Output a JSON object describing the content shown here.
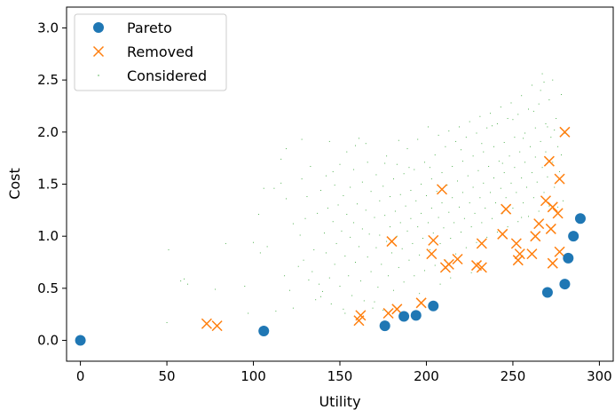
{
  "chart_data": {
    "type": "scatter",
    "title": "",
    "xlabel": "Utility",
    "ylabel": "Cost",
    "xlim": [
      -8,
      308
    ],
    "ylim": [
      -0.2,
      3.2
    ],
    "xticks": [
      0,
      50,
      100,
      150,
      200,
      250,
      300
    ],
    "yticks": [
      0.0,
      0.5,
      1.0,
      1.5,
      2.0,
      2.5,
      3.0
    ],
    "grid": false,
    "legend_position": "top-left",
    "series": [
      {
        "name": "Pareto",
        "marker": "circle",
        "color": "#1f77b4",
        "points": [
          [
            0,
            0.0
          ],
          [
            106,
            0.09
          ],
          [
            176,
            0.14
          ],
          [
            187,
            0.23
          ],
          [
            194,
            0.24
          ],
          [
            204,
            0.33
          ],
          [
            270,
            0.46
          ],
          [
            280,
            0.54
          ],
          [
            282,
            0.79
          ],
          [
            285,
            1.0
          ],
          [
            289,
            1.17
          ]
        ]
      },
      {
        "name": "Removed",
        "marker": "x",
        "color": "#ff7f0e",
        "points": [
          [
            73,
            0.16
          ],
          [
            79,
            0.14
          ],
          [
            161,
            0.19
          ],
          [
            162,
            0.24
          ],
          [
            178,
            0.26
          ],
          [
            183,
            0.3
          ],
          [
            180,
            0.95
          ],
          [
            197,
            0.36
          ],
          [
            203,
            0.83
          ],
          [
            204,
            0.96
          ],
          [
            209,
            1.45
          ],
          [
            211,
            0.7
          ],
          [
            213,
            0.73
          ],
          [
            218,
            0.78
          ],
          [
            229,
            0.72
          ],
          [
            232,
            0.7
          ],
          [
            232,
            0.93
          ],
          [
            244,
            1.02
          ],
          [
            246,
            1.26
          ],
          [
            252,
            0.93
          ],
          [
            253,
            0.77
          ],
          [
            254,
            0.83
          ],
          [
            261,
            0.83
          ],
          [
            263,
            1.0
          ],
          [
            265,
            1.12
          ],
          [
            269,
            1.34
          ],
          [
            271,
            1.72
          ],
          [
            272,
            1.07
          ],
          [
            273,
            0.74
          ],
          [
            273,
            1.28
          ],
          [
            276,
            1.22
          ],
          [
            277,
            1.55
          ],
          [
            277,
            0.85
          ],
          [
            280,
            2.0
          ]
        ]
      },
      {
        "name": "Considered",
        "marker": "point",
        "color": "#2ca02c",
        "points": [
          [
            50,
            0.17
          ],
          [
            51,
            0.87
          ],
          [
            58,
            0.57
          ],
          [
            60,
            0.59
          ],
          [
            62,
            0.54
          ],
          [
            78,
            0.49
          ],
          [
            84,
            0.93
          ],
          [
            95,
            0.52
          ],
          [
            97,
            0.26
          ],
          [
            100,
            0.94
          ],
          [
            103,
            1.21
          ],
          [
            104,
            0.84
          ],
          [
            106,
            1.46
          ],
          [
            108,
            0.9
          ],
          [
            112,
            1.46
          ],
          [
            113,
            0.28
          ],
          [
            116,
            1.51
          ],
          [
            116,
            1.74
          ],
          [
            119,
            1.36
          ],
          [
            119,
            1.84
          ],
          [
            123,
            0.31
          ],
          [
            123,
            1.12
          ],
          [
            126,
            0.71
          ],
          [
            127,
            1.01
          ],
          [
            128,
            1.55
          ],
          [
            129,
            0.77
          ],
          [
            130,
            1.17
          ],
          [
            131,
            1.38
          ],
          [
            133,
            1.67
          ],
          [
            134,
            0.66
          ],
          [
            135,
            0.87
          ],
          [
            136,
            0.39
          ],
          [
            137,
            1.22
          ],
          [
            138,
            0.54
          ],
          [
            139,
            1.44
          ],
          [
            140,
            0.47
          ],
          [
            141,
            1.03
          ],
          [
            142,
            0.84
          ],
          [
            142,
            1.58
          ],
          [
            143,
            1.27
          ],
          [
            144,
            0.6
          ],
          [
            144,
            1.91
          ],
          [
            145,
            0.35
          ],
          [
            146,
            1.14
          ],
          [
            147,
            0.73
          ],
          [
            147,
            1.49
          ],
          [
            148,
            0.93
          ],
          [
            149,
            1.3
          ],
          [
            150,
            0.52
          ],
          [
            150,
            1.69
          ],
          [
            151,
            1.05
          ],
          [
            152,
            0.3
          ],
          [
            152,
            1.39
          ],
          [
            153,
            0.81
          ],
          [
            154,
            1.21
          ],
          [
            154,
            1.81
          ],
          [
            155,
            0.62
          ],
          [
            156,
            0.99
          ],
          [
            156,
            1.47
          ],
          [
            157,
            0.43
          ],
          [
            158,
            1.13
          ],
          [
            158,
            1.64
          ],
          [
            159,
            0.75
          ],
          [
            160,
            1.31
          ],
          [
            161,
            0.9
          ],
          [
            161,
            1.94
          ],
          [
            162,
            0.57
          ],
          [
            163,
            1.07
          ],
          [
            163,
            1.52
          ],
          [
            164,
            0.38
          ],
          [
            165,
            1.25
          ],
          [
            166,
            0.8
          ],
          [
            166,
            1.71
          ],
          [
            167,
            1.02
          ],
          [
            168,
            0.66
          ],
          [
            168,
            1.43
          ],
          [
            169,
            0.31
          ],
          [
            170,
            1.18
          ],
          [
            171,
            0.89
          ],
          [
            171,
            1.59
          ],
          [
            172,
            0.51
          ],
          [
            173,
            1.34
          ],
          [
            173,
            1.01
          ],
          [
            174,
            0.73
          ],
          [
            175,
            1.48
          ],
          [
            175,
            0.29
          ],
          [
            176,
            1.2
          ],
          [
            177,
            0.95
          ],
          [
            177,
            1.77
          ],
          [
            178,
            0.62
          ],
          [
            179,
            1.38
          ],
          [
            179,
            1.09
          ],
          [
            180,
            0.84
          ],
          [
            181,
            1.55
          ],
          [
            181,
            0.48
          ],
          [
            182,
            1.24
          ],
          [
            183,
            1.0
          ],
          [
            183,
            1.69
          ],
          [
            184,
            0.7
          ],
          [
            185,
            1.4
          ],
          [
            185,
            1.13
          ],
          [
            186,
            0.88
          ],
          [
            187,
            1.6
          ],
          [
            187,
            0.56
          ],
          [
            188,
            1.29
          ],
          [
            189,
            1.05
          ],
          [
            189,
            1.84
          ],
          [
            190,
            0.77
          ],
          [
            191,
            1.44
          ],
          [
            191,
            1.17
          ],
          [
            192,
            0.93
          ],
          [
            193,
            1.64
          ],
          [
            193,
            0.62
          ],
          [
            194,
            1.34
          ],
          [
            195,
            1.09
          ],
          [
            195,
            1.93
          ],
          [
            196,
            0.82
          ],
          [
            197,
            1.5
          ],
          [
            197,
            1.22
          ],
          [
            198,
            0.98
          ],
          [
            199,
            1.71
          ],
          [
            199,
            0.67
          ],
          [
            200,
            1.39
          ],
          [
            201,
            1.13
          ],
          [
            201,
            2.05
          ],
          [
            202,
            0.87
          ],
          [
            203,
            1.55
          ],
          [
            203,
            1.27
          ],
          [
            204,
            1.03
          ],
          [
            205,
            1.78
          ],
          [
            205,
            0.72
          ],
          [
            206,
            1.43
          ],
          [
            207,
            1.18
          ],
          [
            207,
            1.97
          ],
          [
            208,
            0.93
          ],
          [
            209,
            1.61
          ],
          [
            209,
            1.32
          ],
          [
            210,
            1.08
          ],
          [
            211,
            1.86
          ],
          [
            211,
            0.77
          ],
          [
            212,
            1.49
          ],
          [
            213,
            1.23
          ],
          [
            213,
            2.01
          ],
          [
            214,
            0.98
          ],
          [
            215,
            1.67
          ],
          [
            215,
            1.37
          ],
          [
            216,
            1.13
          ],
          [
            217,
            1.91
          ],
          [
            217,
            0.83
          ],
          [
            218,
            1.53
          ],
          [
            219,
            1.28
          ],
          [
            219,
            2.05
          ],
          [
            220,
            1.04
          ],
          [
            221,
            1.72
          ],
          [
            221,
            1.42
          ],
          [
            222,
            1.17
          ],
          [
            223,
            1.95
          ],
          [
            223,
            0.89
          ],
          [
            224,
            1.58
          ],
          [
            225,
            1.32
          ],
          [
            225,
            2.1
          ],
          [
            226,
            1.09
          ],
          [
            227,
            1.77
          ],
          [
            227,
            1.47
          ],
          [
            228,
            1.22
          ],
          [
            229,
            1.99
          ],
          [
            229,
            0.94
          ],
          [
            230,
            1.63
          ],
          [
            231,
            1.37
          ],
          [
            231,
            2.15
          ],
          [
            232,
            1.13
          ],
          [
            233,
            1.81
          ],
          [
            233,
            1.51
          ],
          [
            234,
            1.27
          ],
          [
            235,
            2.04
          ],
          [
            235,
            0.99
          ],
          [
            236,
            1.67
          ],
          [
            237,
            1.42
          ],
          [
            237,
            2.18
          ],
          [
            238,
            1.17
          ],
          [
            239,
            1.86
          ],
          [
            239,
            1.56
          ],
          [
            240,
            1.32
          ],
          [
            241,
            2.08
          ],
          [
            241,
            1.04
          ],
          [
            242,
            1.72
          ],
          [
            243,
            1.46
          ],
          [
            243,
            2.24
          ],
          [
            244,
            1.22
          ],
          [
            245,
            1.9
          ],
          [
            245,
            1.61
          ],
          [
            246,
            1.37
          ],
          [
            247,
            2.13
          ],
          [
            247,
            1.09
          ],
          [
            248,
            1.77
          ],
          [
            249,
            1.51
          ],
          [
            249,
            2.28
          ],
          [
            250,
            1.27
          ],
          [
            251,
            1.95
          ],
          [
            251,
            1.66
          ],
          [
            252,
            1.42
          ],
          [
            253,
            2.17
          ],
          [
            253,
            1.14
          ],
          [
            254,
            1.81
          ],
          [
            255,
            1.56
          ],
          [
            255,
            2.35
          ],
          [
            256,
            1.32
          ],
          [
            257,
            1.99
          ],
          [
            257,
            1.71
          ],
          [
            258,
            1.47
          ],
          [
            259,
            2.22
          ],
          [
            259,
            1.19
          ],
          [
            260,
            1.86
          ],
          [
            261,
            1.61
          ],
          [
            261,
            2.45
          ],
          [
            262,
            1.37
          ],
          [
            263,
            2.04
          ],
          [
            263,
            1.76
          ],
          [
            264,
            1.52
          ],
          [
            265,
            2.27
          ],
          [
            265,
            1.24
          ],
          [
            266,
            1.91
          ],
          [
            267,
            1.66
          ],
          [
            267,
            2.56
          ],
          [
            268,
            1.42
          ],
          [
            269,
            2.08
          ],
          [
            269,
            1.81
          ],
          [
            270,
            1.57
          ],
          [
            271,
            2.31
          ],
          [
            271,
            1.29
          ],
          [
            272,
            1.95
          ],
          [
            273,
            1.71
          ],
          [
            273,
            2.5
          ],
          [
            274,
            1.47
          ],
          [
            275,
            2.13
          ],
          [
            276,
            1.86
          ],
          [
            277,
            1.62
          ],
          [
            278,
            2.36
          ],
          [
            279,
            1.34
          ],
          [
            280,
            1.99
          ],
          [
            118,
            0.62
          ],
          [
            121,
            0.48
          ],
          [
            128,
            1.93
          ],
          [
            132,
            0.58
          ],
          [
            139,
            0.42
          ],
          [
            146,
            1.62
          ],
          [
            153,
            0.26
          ],
          [
            159,
            1.87
          ],
          [
            165,
            1.89
          ],
          [
            170,
            0.37
          ],
          [
            176,
            1.7
          ],
          [
            184,
            1.92
          ],
          [
            190,
            1.66
          ],
          [
            196,
            0.45
          ],
          [
            202,
            1.66
          ],
          [
            208,
            0.54
          ],
          [
            214,
            0.6
          ],
          [
            220,
            1.83
          ],
          [
            226,
            0.65
          ],
          [
            232,
            1.89
          ],
          [
            238,
            2.06
          ],
          [
            244,
            1.7
          ],
          [
            250,
            2.12
          ],
          [
            256,
            1.94
          ],
          [
            262,
            2.2
          ],
          [
            266,
            2.4
          ],
          [
            268,
            2.48
          ],
          [
            270,
            2.05
          ],
          [
            274,
            2.02
          ],
          [
            276,
            1.28
          ],
          [
            278,
            1.78
          ],
          [
            255,
            1.18
          ]
        ]
      }
    ]
  }
}
